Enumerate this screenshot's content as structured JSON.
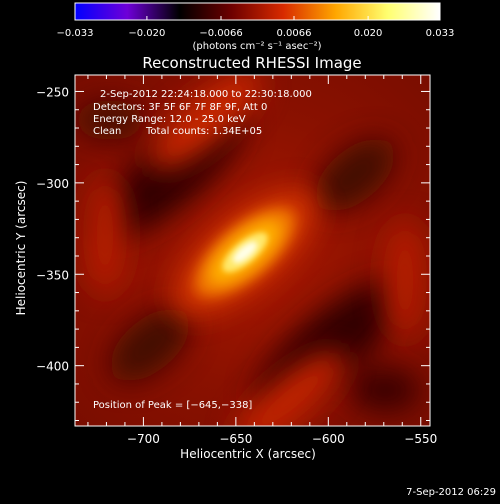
{
  "colorbar": {
    "ticks": [
      "−0.033",
      "−0.020",
      "−0.0066",
      "0.0066",
      "0.020",
      "0.033"
    ],
    "units_label": "(photons cm⁻² s⁻¹ asec⁻²)",
    "stops": [
      "#0000ff",
      "#6e00d8",
      "#000000",
      "#6e0000",
      "#d82a00",
      "#ffa600",
      "#ffff70",
      "#ffffff"
    ],
    "range": [
      -0.033,
      0.033
    ]
  },
  "header": {
    "title": "Reconstructed RHESSI Image"
  },
  "annotations": {
    "time_range": "2-Sep-2012 22:24:18.000 to 22:30:18.000",
    "detectors": "Detectors: 3F 5F 6F 7F 8F 9F, Att 0",
    "energy_range": "Energy Range: 12.0 - 25.0 keV",
    "clean_label": "Clean",
    "total_counts": "Total counts: 1.34E+05",
    "peak_position": "Position of Peak = [−645,−338]"
  },
  "footer": {
    "date": "7-Sep-2012 06:29"
  },
  "chart_data": {
    "type": "heatmap",
    "xlabel": "Heliocentric X (arcsec)",
    "ylabel": "Heliocentric Y (arcsec)",
    "xlim": [
      -737,
      -545
    ],
    "ylim": [
      -433,
      -241
    ],
    "xticks": [
      -700,
      -650,
      -600,
      -550
    ],
    "yticks": [
      -250,
      -300,
      -350,
      -400
    ],
    "xtick_labels": [
      "−700",
      "−650",
      "−600",
      "−550"
    ],
    "ytick_labels": [
      "−250",
      "−300",
      "−350",
      "−400"
    ],
    "peak": [
      -645,
      -338
    ],
    "colormap": "red-temperature",
    "grid": false
  }
}
